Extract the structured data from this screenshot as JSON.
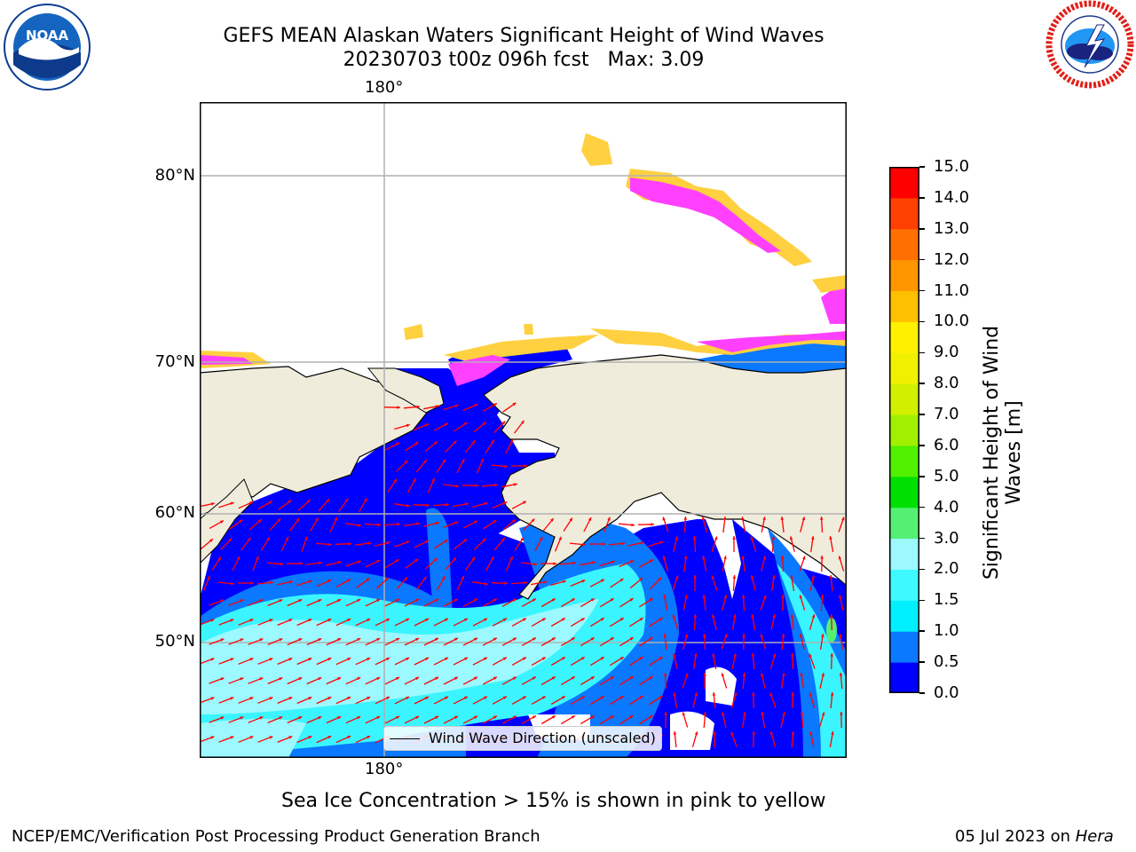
{
  "title": {
    "line1": "GEFS MEAN Alaskan Waters Significant Height of Wind Waves",
    "line2": "20230703 t00z 096h fcst   Max: 3.09"
  },
  "logos": {
    "left_text": "NOAA",
    "left_ring_text": "NATIONAL OCEANIC AND ATMOSPHERIC ADMINISTRATION · U.S. DEPARTMENT OF COMMERCE",
    "right_ring_text": "NATIONAL WEATHER SERVICE"
  },
  "map": {
    "lon_label_top": "180°",
    "lon_label_bottom": "180°",
    "lat_labels": [
      "80°N",
      "70°N",
      "60°N",
      "50°N"
    ],
    "legend_label": "Wind Wave Direction (unscaled)",
    "colors": {
      "land": "#efecdc",
      "sea_deep": "#0000ff",
      "sea_mid": "#0a78ff",
      "sea_light": "#3af5ff",
      "sea_lightest": "#9cf9ff",
      "ice_pink": "#ff40ff",
      "ice_yellow": "#ffd040",
      "arrow": "#ff0000",
      "grid": "#b0b0b0"
    }
  },
  "colorbar": {
    "label_line1": "Significant Height of Wind",
    "label_line2": "Waves [m]",
    "ticks": [
      "0.0",
      "0.5",
      "1.0",
      "1.5",
      "2.0",
      "3.0",
      "4.0",
      "5.0",
      "6.0",
      "7.0",
      "8.0",
      "9.0",
      "10.0",
      "11.0",
      "12.0",
      "13.0",
      "14.0",
      "15.0"
    ],
    "colors": [
      "#0000ff",
      "#0a78ff",
      "#00f0ff",
      "#3cfaff",
      "#9cf9ff",
      "#54f074",
      "#00e000",
      "#50f000",
      "#a0f000",
      "#d0f000",
      "#f0f000",
      "#fff000",
      "#ffc000",
      "#ff9600",
      "#ff7000",
      "#ff4000",
      "#ff0000"
    ]
  },
  "caption": "Sea Ice Concentration > 15% is shown in pink to yellow",
  "footer": {
    "left": "NCEP/EMC/Verification Post Processing Product Generation Branch",
    "right_date": "05 Jul 2023 on ",
    "right_machine": "Hera"
  }
}
